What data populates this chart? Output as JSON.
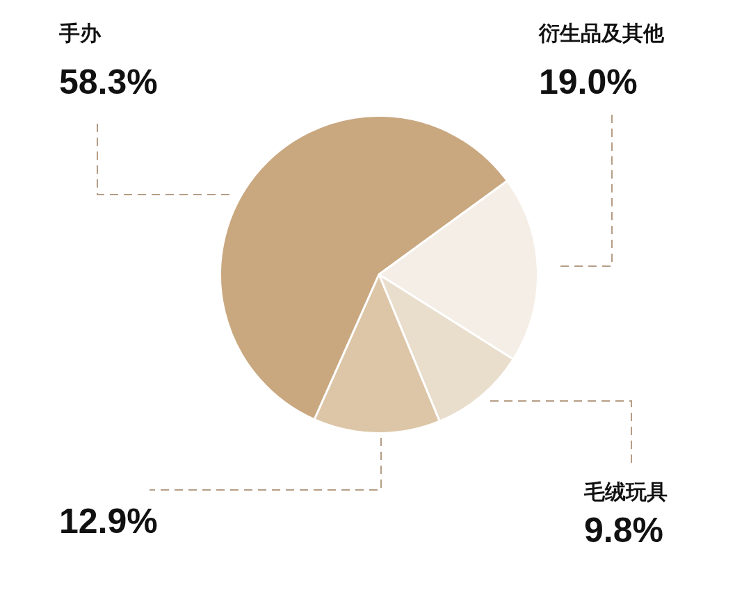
{
  "chart_data": {
    "type": "pie",
    "categories": [
      "手办",
      "衍生品及其他",
      "毛绒玩具",
      null
    ],
    "values": [
      58.3,
      19.0,
      9.8,
      12.9
    ],
    "value_labels": [
      "58.3%",
      "19.0%",
      "9.8%",
      "12.9%"
    ],
    "colors": [
      "#c9a880",
      "#f4eee6",
      "#e9ddcc",
      "#dcc6a7"
    ],
    "legend": false
  }
}
